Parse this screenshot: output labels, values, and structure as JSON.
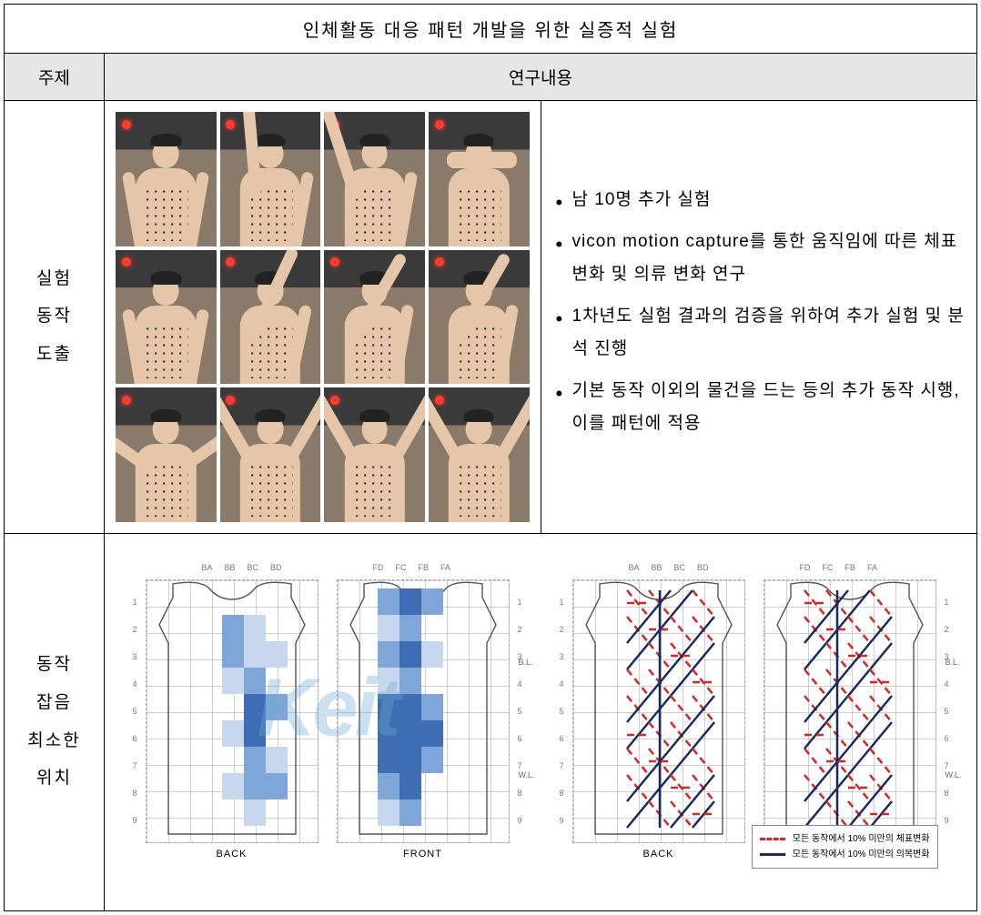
{
  "title": "인체활동 대응 패턴 개발을 위한 실증적 실험",
  "header": {
    "col1": "주제",
    "col2": "연구내용"
  },
  "row1": {
    "label": "실험\n동작\n도출",
    "bullets": [
      "남 10명 추가 실험",
      "vicon motion capture를 통한 움직임에 따른 체표 변화 및 의류 변화 연구",
      "1차년도 실험 결과의 검증을 위하여 추가 실험 및 분석 진행",
      "기본 동작 이외의 물건을 드는 등의 추가 동작 시행, 이를 패턴에 적용"
    ],
    "poses_count": 12
  },
  "row2": {
    "label": "동작\n잡음\n최소한\n위치",
    "col_labels_back": [
      "BA",
      "BB",
      "BC",
      "BD"
    ],
    "col_labels_front": [
      "FD",
      "FC",
      "FB",
      "FA"
    ],
    "row_labels": [
      "1",
      "2",
      "3",
      "4",
      "5",
      "6",
      "7",
      "8",
      "9"
    ],
    "panel_back_caption": "BACK",
    "panel_front_caption": "FRONT",
    "bl_label": "B.L.",
    "wl_label": "W.L.",
    "watermark_text": "Keit",
    "heat_colors": {
      "low": "#c7d7ee",
      "mid": "#7fa6d9",
      "high": "#3f6db3"
    },
    "back_cells": [
      {
        "c": 1,
        "r": 1,
        "lvl": "mid"
      },
      {
        "c": 2,
        "r": 1,
        "lvl": "low"
      },
      {
        "c": 1,
        "r": 2,
        "lvl": "mid"
      },
      {
        "c": 2,
        "r": 2,
        "lvl": "low"
      },
      {
        "c": 3,
        "r": 2,
        "lvl": "low"
      },
      {
        "c": 1,
        "r": 3,
        "lvl": "low"
      },
      {
        "c": 2,
        "r": 3,
        "lvl": "mid"
      },
      {
        "c": 2,
        "r": 4,
        "lvl": "high"
      },
      {
        "c": 3,
        "r": 4,
        "lvl": "mid"
      },
      {
        "c": 1,
        "r": 5,
        "lvl": "low"
      },
      {
        "c": 2,
        "r": 5,
        "lvl": "high"
      },
      {
        "c": 2,
        "r": 6,
        "lvl": "mid"
      },
      {
        "c": 3,
        "r": 6,
        "lvl": "low"
      },
      {
        "c": 1,
        "r": 7,
        "lvl": "low"
      },
      {
        "c": 2,
        "r": 7,
        "lvl": "mid"
      },
      {
        "c": 3,
        "r": 7,
        "lvl": "mid"
      },
      {
        "c": 2,
        "r": 8,
        "lvl": "low"
      }
    ],
    "front_cells": [
      {
        "c": 0,
        "r": 0,
        "lvl": "mid"
      },
      {
        "c": 1,
        "r": 0,
        "lvl": "high"
      },
      {
        "c": 2,
        "r": 0,
        "lvl": "mid"
      },
      {
        "c": 0,
        "r": 1,
        "lvl": "low"
      },
      {
        "c": 1,
        "r": 1,
        "lvl": "mid"
      },
      {
        "c": 0,
        "r": 2,
        "lvl": "mid"
      },
      {
        "c": 1,
        "r": 2,
        "lvl": "high"
      },
      {
        "c": 2,
        "r": 2,
        "lvl": "low"
      },
      {
        "c": 0,
        "r": 3,
        "lvl": "low"
      },
      {
        "c": 1,
        "r": 3,
        "lvl": "mid"
      },
      {
        "c": 0,
        "r": 4,
        "lvl": "high"
      },
      {
        "c": 1,
        "r": 4,
        "lvl": "high"
      },
      {
        "c": 2,
        "r": 4,
        "lvl": "mid"
      },
      {
        "c": 0,
        "r": 5,
        "lvl": "high"
      },
      {
        "c": 1,
        "r": 5,
        "lvl": "high"
      },
      {
        "c": 2,
        "r": 5,
        "lvl": "high"
      },
      {
        "c": 0,
        "r": 6,
        "lvl": "high"
      },
      {
        "c": 1,
        "r": 6,
        "lvl": "high"
      },
      {
        "c": 2,
        "r": 6,
        "lvl": "mid"
      },
      {
        "c": 0,
        "r": 7,
        "lvl": "mid"
      },
      {
        "c": 1,
        "r": 7,
        "lvl": "high"
      },
      {
        "c": 0,
        "r": 8,
        "lvl": "low"
      },
      {
        "c": 1,
        "r": 8,
        "lvl": "mid"
      }
    ],
    "legend": {
      "red": {
        "color": "#d62728",
        "dash": true,
        "text": "모든 동작에서 10% 미만의 체표변화"
      },
      "navy": {
        "color": "#1a2a5a",
        "dash": false,
        "text": "모든 동작에서 10% 미만의 의복변화"
      }
    }
  }
}
